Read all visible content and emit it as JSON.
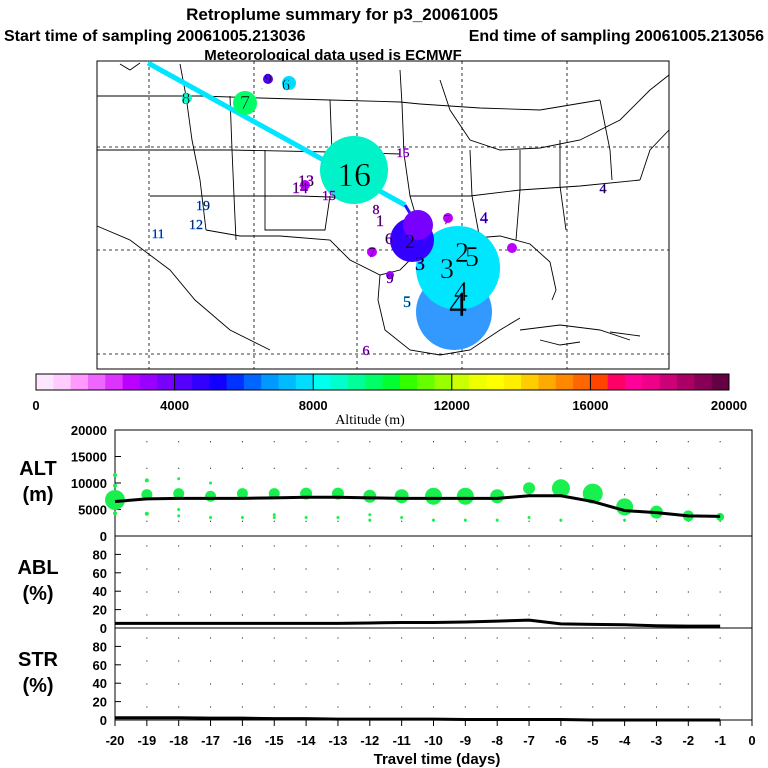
{
  "header": {
    "title": "Retroplume summary for p3_20061005",
    "start": "Start time of sampling 20061005.213036",
    "end": "End time of sampling 20061005.213056",
    "met": "Meteorological data used is ECMWF"
  },
  "colorbar": {
    "label": "Altitude (m)",
    "min": 0,
    "max": 20000,
    "ticks": [
      "0",
      "4000",
      "8000",
      "12000",
      "16000",
      "20000"
    ],
    "colors": [
      "#ffe6ff",
      "#ffccff",
      "#ff99ff",
      "#ee66ff",
      "#dd33ff",
      "#bb00ff",
      "#9900ff",
      "#7700ff",
      "#5500ff",
      "#3300ff",
      "#1100ff",
      "#0033ff",
      "#0066ff",
      "#0099ff",
      "#00bbff",
      "#00ddff",
      "#00ffee",
      "#00ffcc",
      "#00ff99",
      "#00ff66",
      "#00ff33",
      "#33ff00",
      "#66ff00",
      "#99ff00",
      "#ccff00",
      "#eeff00",
      "#ffff00",
      "#ffee00",
      "#ffcc00",
      "#ffaa00",
      "#ff8800",
      "#ff6600",
      "#ff4400",
      "#ff0066",
      "#ff0099",
      "#ee0088",
      "#cc0077",
      "#aa0066",
      "#880055",
      "#660044"
    ]
  },
  "map": {
    "labels": [
      {
        "t": "9",
        "c": "#5500ff"
      },
      {
        "t": "6",
        "c": "#00ddff"
      },
      {
        "t": "8",
        "c": "#00ffcc"
      },
      {
        "t": "7",
        "c": "#00ff66"
      },
      {
        "t": "16",
        "c": "#00ffcc"
      },
      {
        "t": "13",
        "c": "#bb00ff"
      },
      {
        "t": "14",
        "c": "#bb00ff"
      },
      {
        "t": "15",
        "c": "#bb00ff"
      },
      {
        "t": "15",
        "c": "#bb00ff"
      },
      {
        "t": "19",
        "c": "#0066ff"
      },
      {
        "t": "12",
        "c": "#0066ff"
      },
      {
        "t": "11",
        "c": "#0066ff"
      },
      {
        "t": "8",
        "c": "#bb00ff"
      },
      {
        "t": "1",
        "c": "#bb00ff"
      },
      {
        "t": "6",
        "c": "#9900ff"
      },
      {
        "t": "7",
        "c": "#9900ff"
      },
      {
        "t": "2",
        "c": "#5500ff"
      },
      {
        "t": "3",
        "c": "#3300ff"
      },
      {
        "t": "9",
        "c": "#9900ff"
      },
      {
        "t": "7",
        "c": "#bb00ff"
      },
      {
        "t": "4",
        "c": "#5500ff"
      },
      {
        "t": "3",
        "c": "#00ddff"
      },
      {
        "t": "2",
        "c": "#00ddff"
      },
      {
        "t": "5",
        "c": "#00ddff"
      },
      {
        "t": "4",
        "c": "#00ddff"
      },
      {
        "t": "4",
        "c": "#0099ff"
      },
      {
        "t": "5",
        "c": "#0099ff"
      },
      {
        "t": "6",
        "c": "#bb00ff"
      },
      {
        "t": "4",
        "c": "#5500ff"
      },
      {
        "t": "6",
        "c": "#0066ff"
      }
    ]
  },
  "chart_data": [
    {
      "type": "scatter",
      "name": "ALT",
      "ylabel": "ALT\n(m)",
      "ylabel_lines": [
        "ALT",
        "(m)"
      ],
      "ylim": [
        0,
        20000
      ],
      "yticks": [
        "0",
        "5000",
        "10000",
        "15000",
        "20000"
      ],
      "x": [
        -20,
        -19,
        -18,
        -17,
        -16,
        -15,
        -14,
        -13,
        -12,
        -11,
        -10,
        -9,
        -8,
        -7,
        -6,
        -5,
        -4,
        -3,
        -2,
        -1
      ],
      "line_values": [
        6500,
        7000,
        7100,
        7100,
        7100,
        7200,
        7300,
        7300,
        7200,
        7100,
        7100,
        7100,
        7100,
        7600,
        7600,
        6500,
        4800,
        4400,
        3800,
        3700
      ],
      "scatter_points": [
        {
          "x": -20,
          "y": 6800,
          "s": 20
        },
        {
          "x": -20,
          "y": 11500,
          "s": 4
        },
        {
          "x": -20,
          "y": 9500,
          "s": 4
        },
        {
          "x": -20,
          "y": 4300,
          "s": 4
        },
        {
          "x": -19,
          "y": 7800,
          "s": 11
        },
        {
          "x": -19,
          "y": 10500,
          "s": 4
        },
        {
          "x": -19,
          "y": 4200,
          "s": 4
        },
        {
          "x": -18,
          "y": 8000,
          "s": 11
        },
        {
          "x": -18,
          "y": 10800,
          "s": 3
        },
        {
          "x": -18,
          "y": 5000,
          "s": 3
        },
        {
          "x": -18,
          "y": 3800,
          "s": 3
        },
        {
          "x": -17,
          "y": 7500,
          "s": 11
        },
        {
          "x": -17,
          "y": 10000,
          "s": 3
        },
        {
          "x": -17,
          "y": 3500,
          "s": 3
        },
        {
          "x": -16,
          "y": 8000,
          "s": 11
        },
        {
          "x": -16,
          "y": 3500,
          "s": 3
        },
        {
          "x": -15,
          "y": 8000,
          "s": 11
        },
        {
          "x": -15,
          "y": 4000,
          "s": 3
        },
        {
          "x": -15,
          "y": 3500,
          "s": 3
        },
        {
          "x": -14,
          "y": 8000,
          "s": 12
        },
        {
          "x": -14,
          "y": 3500,
          "s": 3
        },
        {
          "x": -13,
          "y": 8000,
          "s": 12
        },
        {
          "x": -13,
          "y": 3500,
          "s": 3
        },
        {
          "x": -12,
          "y": 7500,
          "s": 13
        },
        {
          "x": -12,
          "y": 4000,
          "s": 3
        },
        {
          "x": -12,
          "y": 3000,
          "s": 3
        },
        {
          "x": -11,
          "y": 7500,
          "s": 14
        },
        {
          "x": -11,
          "y": 3500,
          "s": 3
        },
        {
          "x": -10,
          "y": 7500,
          "s": 17
        },
        {
          "x": -10,
          "y": 3000,
          "s": 3
        },
        {
          "x": -9,
          "y": 7500,
          "s": 17
        },
        {
          "x": -9,
          "y": 3000,
          "s": 3
        },
        {
          "x": -8,
          "y": 7500,
          "s": 14
        },
        {
          "x": -8,
          "y": 3000,
          "s": 3
        },
        {
          "x": -7,
          "y": 9000,
          "s": 12
        },
        {
          "x": -7,
          "y": 3500,
          "s": 3
        },
        {
          "x": -6,
          "y": 9000,
          "s": 18
        },
        {
          "x": -6,
          "y": 3000,
          "s": 3
        },
        {
          "x": -5,
          "y": 8000,
          "s": 20
        },
        {
          "x": -4,
          "y": 5500,
          "s": 17
        },
        {
          "x": -4,
          "y": 3000,
          "s": 3
        },
        {
          "x": -3,
          "y": 4500,
          "s": 13
        },
        {
          "x": -2,
          "y": 3800,
          "s": 11
        },
        {
          "x": -1,
          "y": 3600,
          "s": 8
        }
      ]
    },
    {
      "type": "line",
      "name": "ABL",
      "ylabel_lines": [
        "ABL",
        "(%)"
      ],
      "ylim": [
        0,
        100
      ],
      "yticks": [
        "0",
        "20",
        "40",
        "60",
        "80"
      ],
      "x": [
        -20,
        -19,
        -18,
        -17,
        -16,
        -15,
        -14,
        -13,
        -12,
        -11,
        -10,
        -9,
        -8,
        -7,
        -6,
        -5,
        -4,
        -3,
        -2,
        -1
      ],
      "values": [
        5,
        5,
        5,
        5,
        5,
        5,
        5,
        5,
        5.5,
        6,
        6,
        6.5,
        7.5,
        8.5,
        4.5,
        4,
        3.5,
        2.5,
        2,
        2
      ]
    },
    {
      "type": "line",
      "name": "STR",
      "ylabel_lines": [
        "STR",
        "(%)"
      ],
      "ylim": [
        0,
        100
      ],
      "yticks": [
        "0",
        "20",
        "40",
        "60",
        "80"
      ],
      "x": [
        -20,
        -19,
        -18,
        -17,
        -16,
        -15,
        -14,
        -13,
        -12,
        -11,
        -10,
        -9,
        -8,
        -7,
        -6,
        -5,
        -4,
        -3,
        -2,
        -1
      ],
      "values": [
        2.5,
        2.5,
        2.5,
        2,
        2,
        1.5,
        1.5,
        1,
        1,
        1,
        1,
        0.5,
        0.5,
        0.5,
        0.5,
        0,
        0,
        0,
        0,
        0
      ],
      "xlabel": "Travel time (days)",
      "xticks": [
        "-20",
        "-19",
        "-18",
        "-17",
        "-16",
        "-15",
        "-14",
        "-13",
        "-12",
        "-11",
        "-10",
        "-9",
        "-8",
        "-7",
        "-6",
        "-5",
        "-4",
        "-3",
        "-2",
        "-1",
        "0"
      ]
    }
  ]
}
